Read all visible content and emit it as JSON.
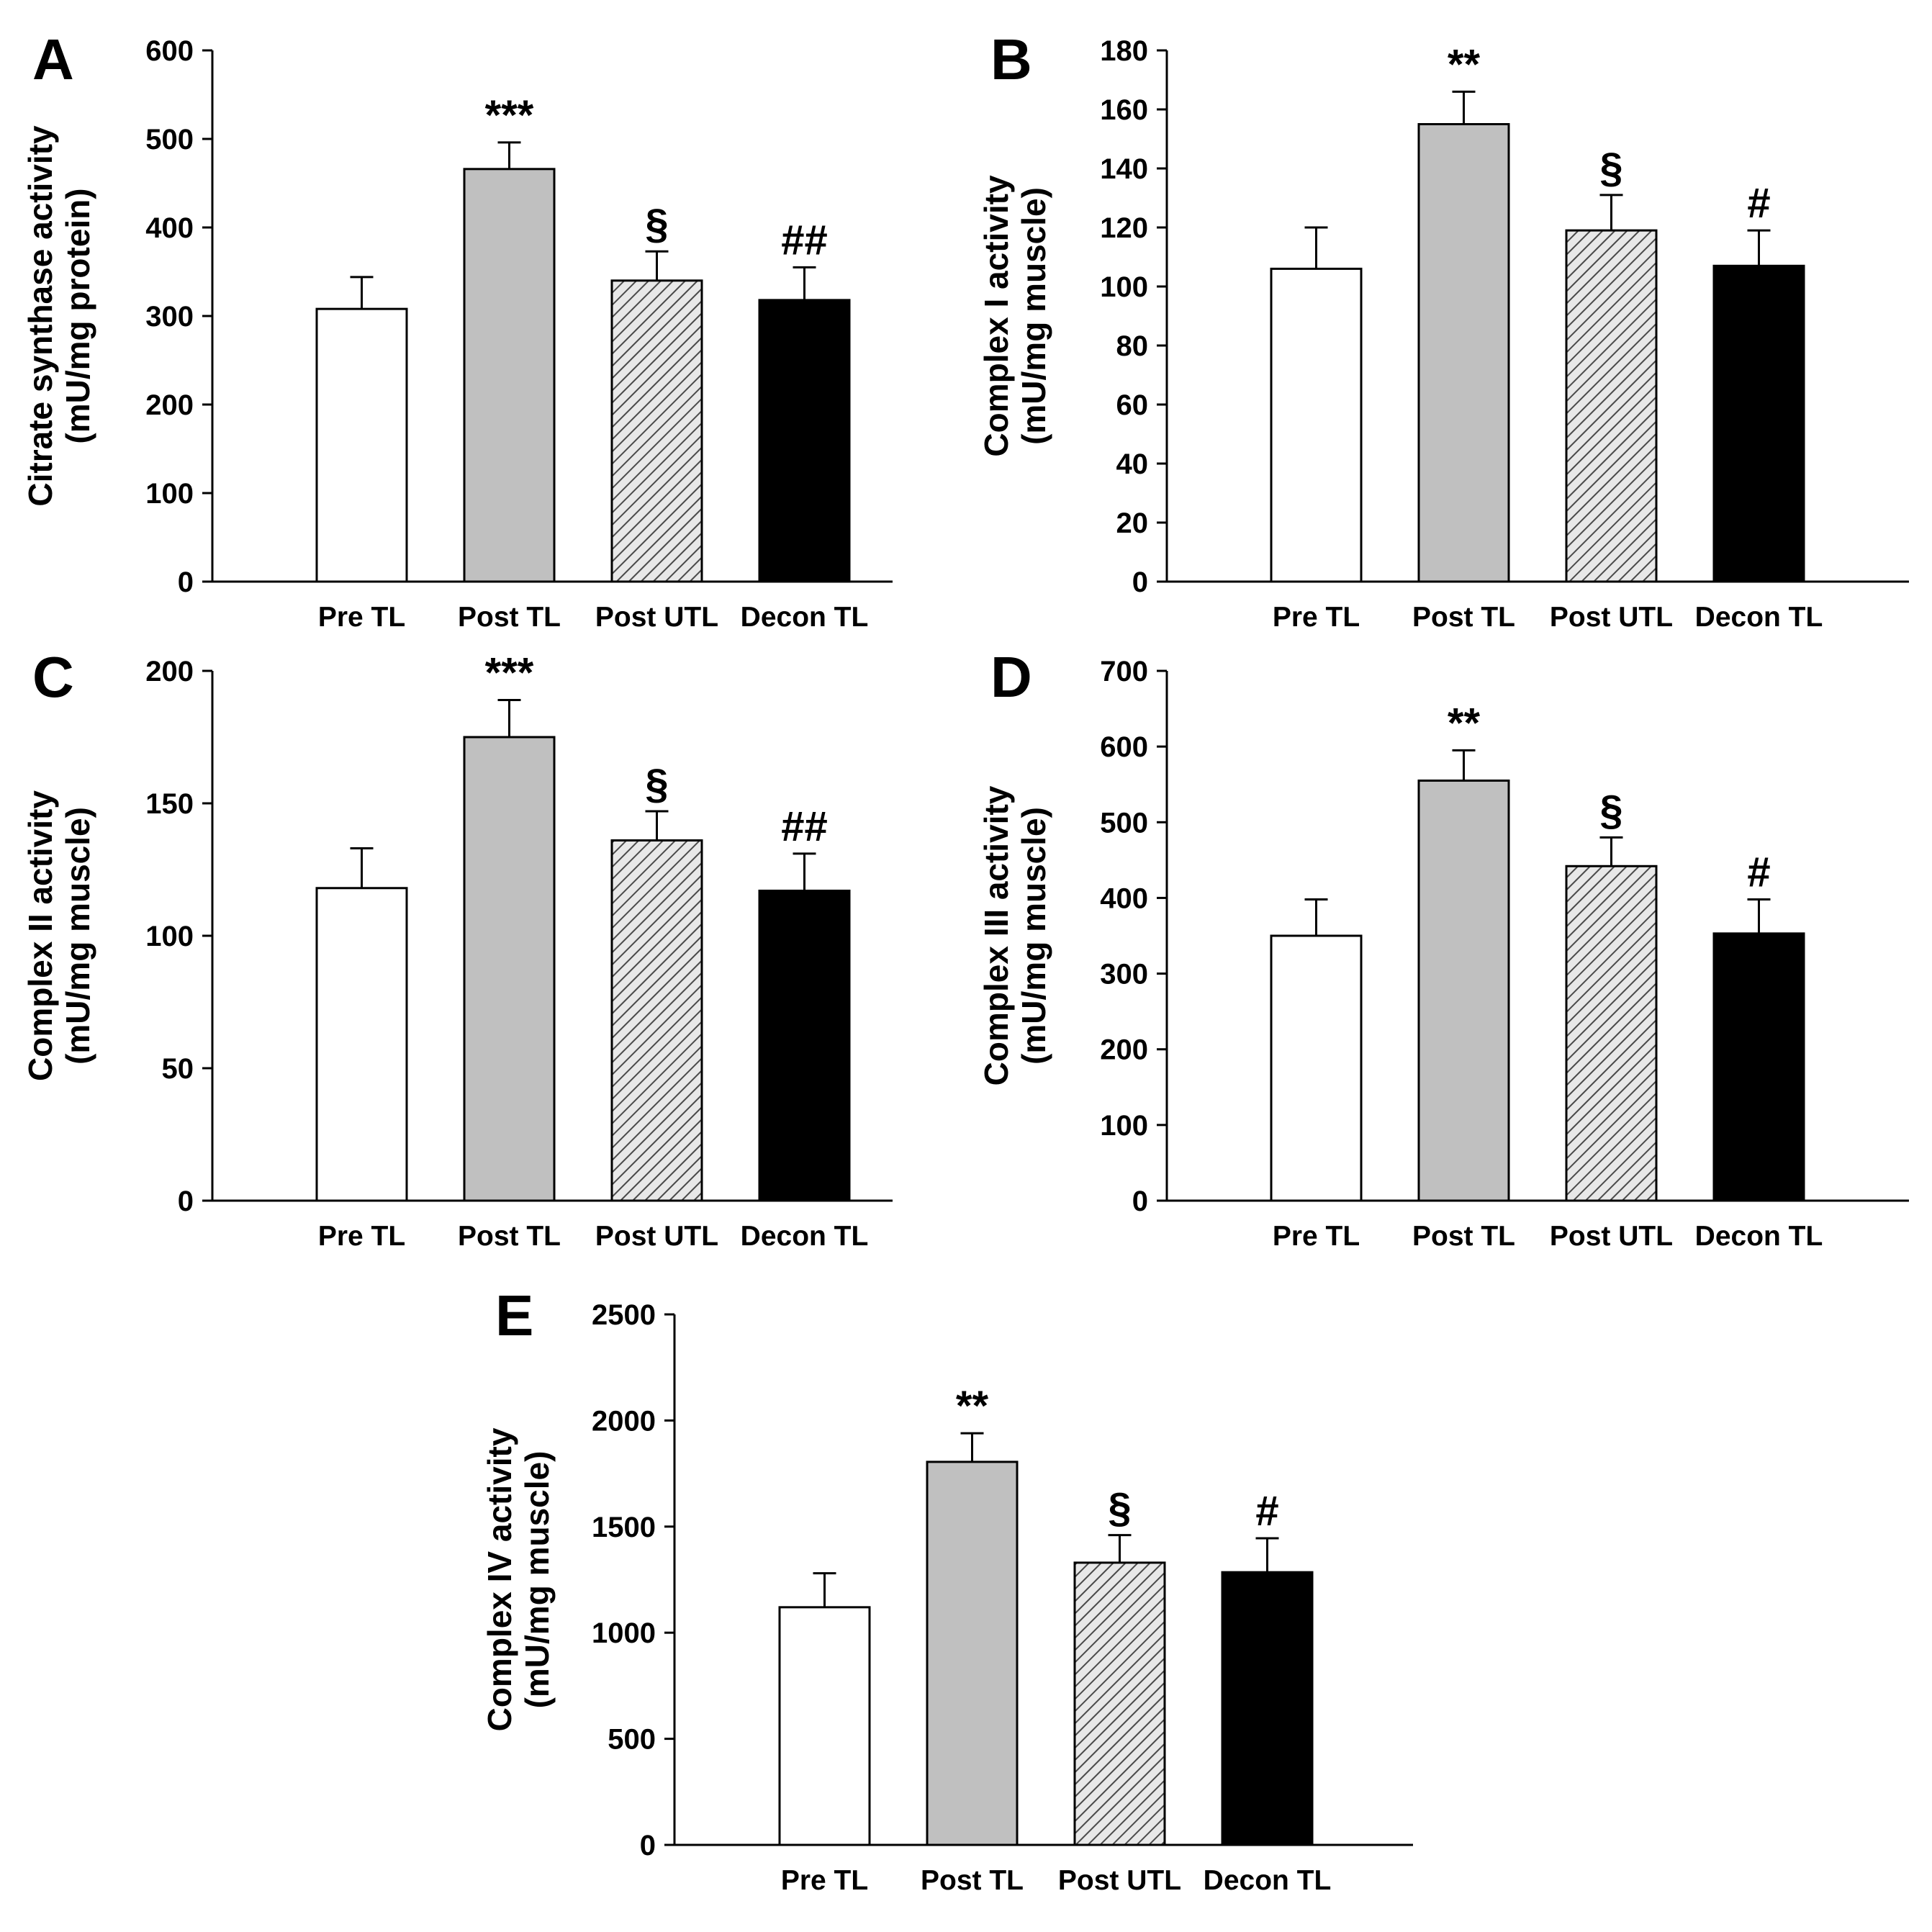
{
  "chart_data": [
    {
      "panel": "A",
      "type": "bar",
      "categories": [
        "Pre TL",
        "Post TL",
        "Post UTL",
        "Decon TL"
      ],
      "values": [
        308,
        466,
        340,
        318
      ],
      "errors": [
        36,
        30,
        33,
        37
      ],
      "annotations": [
        "",
        "***",
        "§",
        "##"
      ],
      "ylabel_line1": "Citrate synthase activity",
      "ylabel_line2": "(mU/mg protein)",
      "ylim": [
        0,
        600
      ],
      "yticks": [
        0,
        100,
        200,
        300,
        400,
        500,
        600
      ],
      "bar_fills": [
        "white",
        "gray",
        "hatched",
        "black"
      ]
    },
    {
      "panel": "B",
      "type": "bar",
      "categories": [
        "Pre TL",
        "Post TL",
        "Post UTL",
        "Decon TL"
      ],
      "values": [
        106,
        155,
        119,
        107
      ],
      "errors": [
        14,
        11,
        12,
        12
      ],
      "annotations": [
        "",
        "**",
        "§",
        "#"
      ],
      "ylabel_line1": "Complex I activity",
      "ylabel_line2": "(mU/mg muscle)",
      "ylim": [
        0,
        180
      ],
      "yticks": [
        0,
        20,
        40,
        60,
        80,
        100,
        120,
        140,
        160,
        180
      ],
      "bar_fills": [
        "white",
        "gray",
        "hatched",
        "black"
      ]
    },
    {
      "panel": "C",
      "type": "bar",
      "categories": [
        "Pre TL",
        "Post TL",
        "Post UTL",
        "Decon TL"
      ],
      "values": [
        118,
        175,
        136,
        117
      ],
      "errors": [
        15,
        14,
        11,
        14
      ],
      "annotations": [
        "",
        "***",
        "§",
        "##"
      ],
      "ylabel_line1": "Complex II activity",
      "ylabel_line2": "(mU/mg muscle)",
      "ylim": [
        0,
        200
      ],
      "yticks": [
        0,
        50,
        100,
        150,
        200
      ],
      "bar_fills": [
        "white",
        "gray",
        "hatched",
        "black"
      ]
    },
    {
      "panel": "D",
      "type": "bar",
      "categories": [
        "Pre TL",
        "Post TL",
        "Post UTL",
        "Decon TL"
      ],
      "values": [
        350,
        555,
        442,
        353
      ],
      "errors": [
        48,
        40,
        38,
        45
      ],
      "annotations": [
        "",
        "**",
        "§",
        "#"
      ],
      "ylabel_line1": "Complex III activity",
      "ylabel_line2": "(mU/mg muscle)",
      "ylim": [
        0,
        700
      ],
      "yticks": [
        0,
        100,
        200,
        300,
        400,
        500,
        600,
        700
      ],
      "bar_fills": [
        "white",
        "gray",
        "hatched",
        "black"
      ]
    },
    {
      "panel": "E",
      "type": "bar",
      "categories": [
        "Pre TL",
        "Post TL",
        "Post UTL",
        "Decon TL"
      ],
      "values": [
        1120,
        1805,
        1330,
        1285
      ],
      "errors": [
        160,
        135,
        130,
        160
      ],
      "annotations": [
        "",
        "**",
        "§",
        "#"
      ],
      "ylabel_line1": "Complex IV activity",
      "ylabel_line2": "(mU/mg muscle)",
      "ylim": [
        0,
        2500
      ],
      "yticks": [
        0,
        500,
        1000,
        1500,
        2000,
        2500
      ],
      "bar_fills": [
        "white",
        "gray",
        "hatched",
        "black"
      ]
    }
  ],
  "colors": {
    "axis": "#000000",
    "bar_white": "#ffffff",
    "bar_gray": "#c0c0c0",
    "bar_hatched_bg": "#e8e8e8",
    "bar_hatched_line": "#4a4a4a",
    "bar_black": "#000000"
  }
}
